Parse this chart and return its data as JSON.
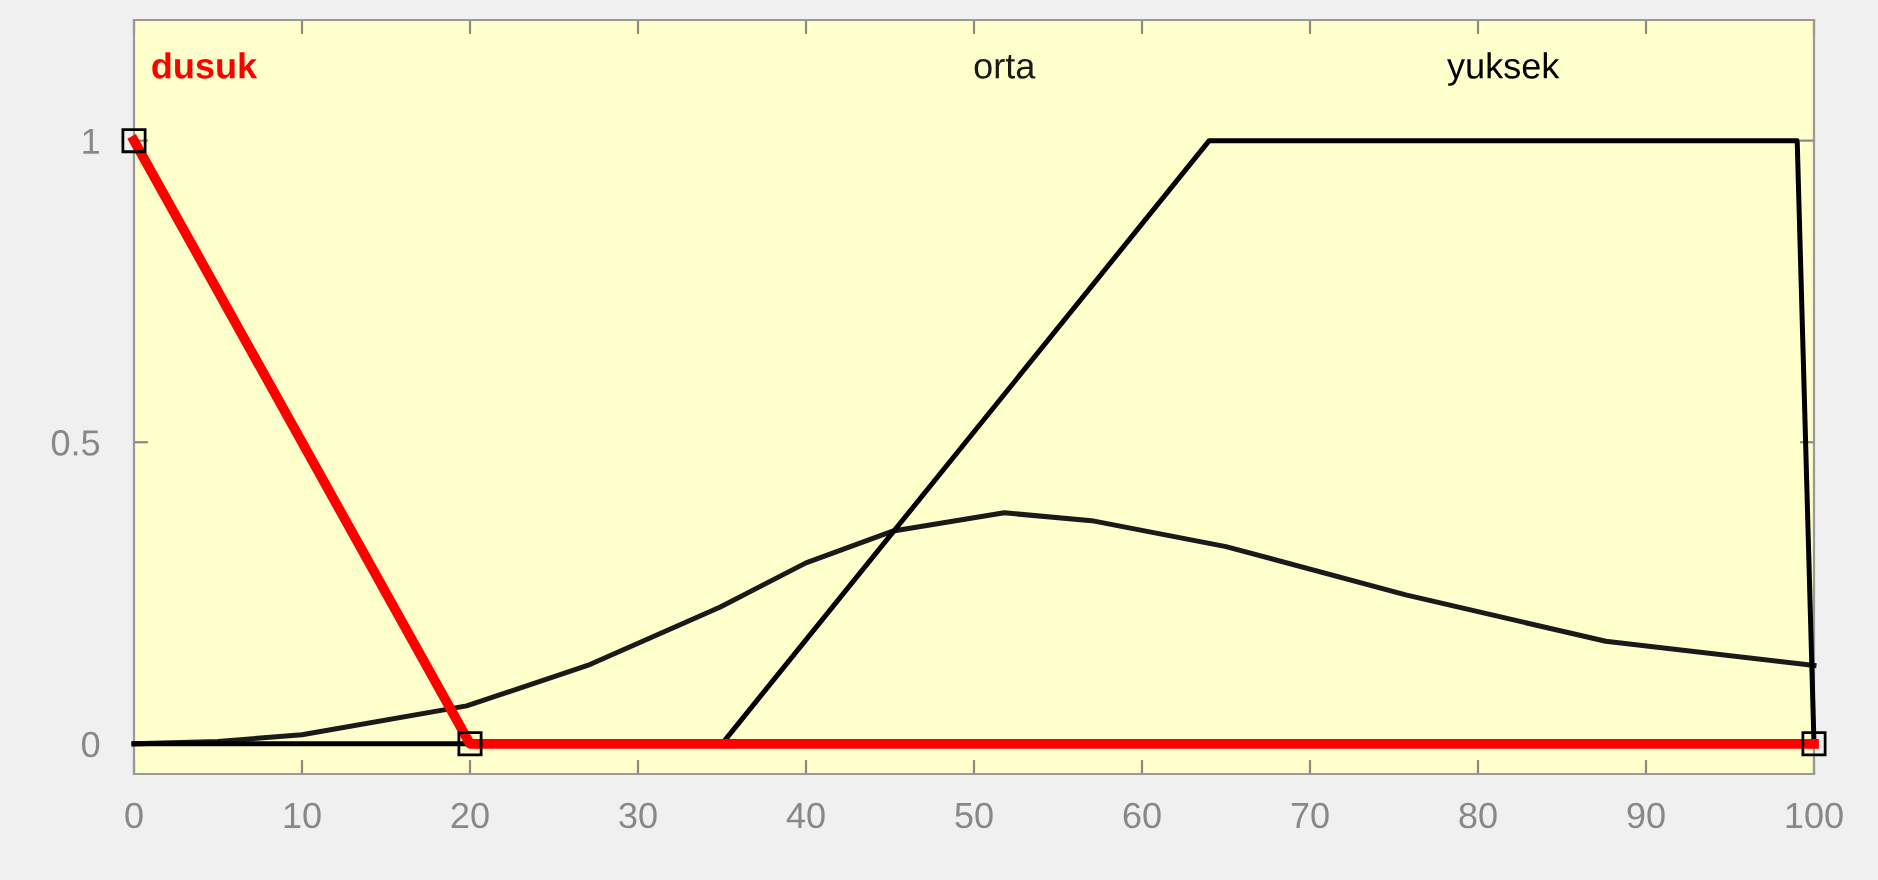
{
  "chart_data": {
    "type": "line",
    "xlim": [
      0,
      100
    ],
    "ylim": [
      -0.05,
      1.2
    ],
    "xticks": [
      0,
      10,
      20,
      30,
      40,
      50,
      60,
      70,
      80,
      90,
      100
    ],
    "yticks": [
      0,
      0.5,
      1
    ],
    "grid": false,
    "legend": false,
    "series": [
      {
        "name": "dusuk",
        "color": "#ff0000",
        "x": [
          0,
          20,
          100
        ],
        "values": [
          1,
          0,
          0
        ],
        "marker": "square"
      },
      {
        "name": "orta",
        "color": "#1a1a1a",
        "x": [
          0,
          5,
          10,
          19.8,
          27,
          34.9,
          40,
          45.2,
          51.8,
          57,
          65,
          75.7,
          87.6,
          100
        ],
        "values": [
          0,
          0.004,
          0.015,
          0.063,
          0.13,
          0.227,
          0.3,
          0.353,
          0.383,
          0.37,
          0.327,
          0.247,
          0.17,
          0.13
        ]
      },
      {
        "name": "yuksek",
        "color": "#000000",
        "x": [
          0,
          35,
          64,
          99,
          100
        ],
        "values": [
          0,
          0,
          1,
          1,
          0
        ]
      }
    ]
  }
}
